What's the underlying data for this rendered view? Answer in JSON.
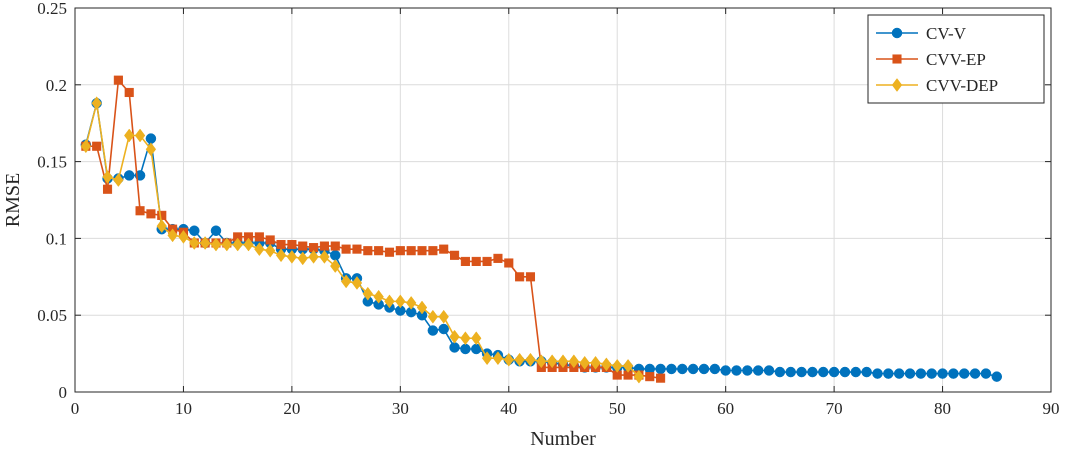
{
  "chart_data": {
    "type": "line",
    "title": "",
    "xlabel": "Number",
    "ylabel": "RMSE",
    "xlim": [
      0,
      90
    ],
    "ylim": [
      0,
      0.25
    ],
    "xticks": [
      0,
      10,
      20,
      30,
      40,
      50,
      60,
      70,
      80,
      90
    ],
    "yticks": [
      0,
      0.05,
      0.1,
      0.15,
      0.2,
      0.25
    ],
    "xtick_labels": [
      "0",
      "10",
      "20",
      "30",
      "40",
      "50",
      "60",
      "70",
      "80",
      "90"
    ],
    "ytick_labels": [
      "0",
      "0.05",
      "0.1",
      "0.15",
      "0.2",
      "0.25"
    ],
    "grid": true,
    "legend_position": "top-right",
    "series": [
      {
        "name": "CV-V",
        "color": "#0072BD",
        "marker": "circle",
        "x": [
          1,
          2,
          3,
          4,
          5,
          6,
          7,
          8,
          9,
          10,
          11,
          12,
          13,
          14,
          15,
          16,
          17,
          18,
          19,
          20,
          21,
          22,
          23,
          24,
          25,
          26,
          27,
          28,
          29,
          30,
          31,
          32,
          33,
          34,
          35,
          36,
          37,
          38,
          39,
          40,
          41,
          42,
          43,
          44,
          45,
          46,
          47,
          48,
          49,
          50,
          51,
          52,
          53,
          54,
          55,
          56,
          57,
          58,
          59,
          60,
          61,
          62,
          63,
          64,
          65,
          66,
          67,
          68,
          69,
          70,
          71,
          72,
          73,
          74,
          75,
          76,
          77,
          78,
          79,
          80,
          81,
          82,
          83,
          84,
          85
        ],
        "values": [
          0.161,
          0.188,
          0.139,
          0.139,
          0.141,
          0.141,
          0.165,
          0.106,
          0.106,
          0.106,
          0.105,
          0.097,
          0.105,
          0.097,
          0.097,
          0.097,
          0.097,
          0.097,
          0.093,
          0.093,
          0.093,
          0.093,
          0.092,
          0.089,
          0.074,
          0.074,
          0.059,
          0.057,
          0.055,
          0.053,
          0.052,
          0.05,
          0.04,
          0.041,
          0.029,
          0.028,
          0.028,
          0.025,
          0.024,
          0.021,
          0.02,
          0.02,
          0.02,
          0.019,
          0.018,
          0.017,
          0.016,
          0.016,
          0.016,
          0.016,
          0.016,
          0.015,
          0.015,
          0.015,
          0.015,
          0.015,
          0.015,
          0.015,
          0.015,
          0.014,
          0.014,
          0.014,
          0.014,
          0.014,
          0.013,
          0.013,
          0.013,
          0.013,
          0.013,
          0.013,
          0.013,
          0.013,
          0.013,
          0.012,
          0.012,
          0.012,
          0.012,
          0.012,
          0.012,
          0.012,
          0.012,
          0.012,
          0.012,
          0.012,
          0.01
        ]
      },
      {
        "name": "CVV-EP",
        "color": "#D95319",
        "marker": "square",
        "x": [
          1,
          2,
          3,
          4,
          5,
          6,
          7,
          8,
          9,
          10,
          11,
          12,
          13,
          14,
          15,
          16,
          17,
          18,
          19,
          20,
          21,
          22,
          23,
          24,
          25,
          26,
          27,
          28,
          29,
          30,
          31,
          32,
          33,
          34,
          35,
          36,
          37,
          38,
          39,
          40,
          41,
          42,
          43,
          44,
          45,
          46,
          47,
          48,
          49,
          50,
          51,
          52,
          53,
          54
        ],
        "values": [
          0.16,
          0.16,
          0.132,
          0.203,
          0.195,
          0.118,
          0.116,
          0.115,
          0.106,
          0.104,
          0.097,
          0.097,
          0.097,
          0.097,
          0.101,
          0.101,
          0.101,
          0.099,
          0.096,
          0.096,
          0.095,
          0.094,
          0.095,
          0.095,
          0.093,
          0.093,
          0.092,
          0.092,
          0.091,
          0.092,
          0.092,
          0.092,
          0.092,
          0.093,
          0.089,
          0.085,
          0.085,
          0.085,
          0.087,
          0.084,
          0.075,
          0.075,
          0.016,
          0.016,
          0.016,
          0.016,
          0.016,
          0.016,
          0.016,
          0.011,
          0.011,
          0.011,
          0.01,
          0.009
        ]
      },
      {
        "name": "CVV-DEP",
        "color": "#EDB120",
        "marker": "diamond",
        "x": [
          1,
          2,
          3,
          4,
          5,
          6,
          7,
          8,
          9,
          10,
          11,
          12,
          13,
          14,
          15,
          16,
          17,
          18,
          19,
          20,
          21,
          22,
          23,
          24,
          25,
          26,
          27,
          28,
          29,
          30,
          31,
          32,
          33,
          34,
          35,
          36,
          37,
          38,
          39,
          40,
          41,
          42,
          43,
          44,
          45,
          46,
          47,
          48,
          49,
          50,
          51,
          52
        ],
        "values": [
          0.16,
          0.188,
          0.14,
          0.138,
          0.167,
          0.167,
          0.158,
          0.108,
          0.102,
          0.101,
          0.097,
          0.097,
          0.096,
          0.096,
          0.096,
          0.096,
          0.093,
          0.092,
          0.089,
          0.088,
          0.087,
          0.088,
          0.088,
          0.082,
          0.072,
          0.071,
          0.064,
          0.062,
          0.059,
          0.059,
          0.058,
          0.055,
          0.049,
          0.049,
          0.036,
          0.035,
          0.035,
          0.022,
          0.022,
          0.021,
          0.021,
          0.021,
          0.02,
          0.02,
          0.02,
          0.02,
          0.019,
          0.019,
          0.018,
          0.017,
          0.017,
          0.01
        ]
      }
    ]
  }
}
